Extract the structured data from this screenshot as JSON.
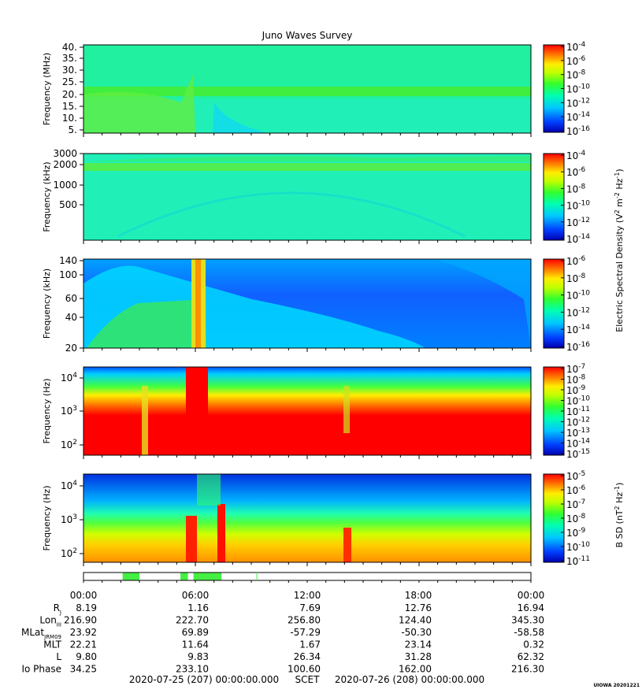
{
  "title": "Juno Waves Survey",
  "chart_data": [
    {
      "type": "heatmap",
      "ylabel": "Frequency (MHz)",
      "yticks": [
        "40.",
        "35.",
        "30.",
        "25.",
        "20.",
        "15.",
        "10.",
        "5."
      ],
      "colorbar_ticks": [
        "-4",
        "-6",
        "-8",
        "-10",
        "-12",
        "-14",
        "-16"
      ]
    },
    {
      "type": "heatmap",
      "ylabel": "Frequency (kHz)",
      "yticks": [
        "3000",
        "2000",
        "1000",
        "500"
      ],
      "colorbar_ticks": [
        "-4",
        "-6",
        "-8",
        "-10",
        "-12",
        "-14"
      ]
    },
    {
      "type": "heatmap",
      "ylabel": "Frequency (kHz)",
      "yticks": [
        "140",
        "100",
        "60",
        "40",
        "20"
      ],
      "colorbar_ticks": [
        "-6",
        "-8",
        "-10",
        "-12",
        "-14",
        "-16"
      ]
    },
    {
      "type": "heatmap",
      "ylabel": "Frequency (Hz)",
      "yticks": [
        "4",
        "3",
        "2"
      ],
      "colorbar_ticks": [
        "-7",
        "-8",
        "-9",
        "-10",
        "-11",
        "-12",
        "-13",
        "-14",
        "-15"
      ]
    },
    {
      "type": "heatmap",
      "ylabel": "Frequency (Hz)",
      "yticks": [
        "4",
        "3",
        "2"
      ],
      "colorbar_ticks": [
        "-5",
        "-6",
        "-7",
        "-8",
        "-9",
        "-10",
        "-11"
      ]
    }
  ],
  "colorbar_labels": {
    "electric": "Electric Spectral Density (V² m⁻² Hz⁻¹)",
    "electric_main": "Electric Spectral Density (V",
    "electric_mid": " m",
    "electric_end": " Hz",
    "electric_close": ")",
    "magnetic_main": "B SD (nT",
    "magnetic_end": " Hz",
    "magnetic_close": ")",
    "sup2": "2",
    "supm2": "-2",
    "supm1": "-1"
  },
  "time_ticks": [
    "00:00",
    "06:00",
    "12:00",
    "18:00",
    "00:00"
  ],
  "ephemeris": {
    "rows": [
      {
        "label": "R",
        "sub": "J",
        "values": [
          "8.19",
          "1.16",
          "7.69",
          "12.76",
          "16.94"
        ]
      },
      {
        "label": "Lon",
        "sub": "III",
        "values": [
          "216.90",
          "222.70",
          "256.80",
          "124.40",
          "345.30"
        ]
      },
      {
        "label": "MLat",
        "sub": "JRM09",
        "values": [
          "23.92",
          "69.89",
          "-57.29",
          "-50.30",
          "-58.58"
        ]
      },
      {
        "label": "MLT",
        "sub": "",
        "values": [
          "22.21",
          "11.64",
          "1.67",
          "23.14",
          "0.32"
        ]
      },
      {
        "label": "L",
        "sub": "",
        "values": [
          "9.80",
          "9.83",
          "26.34",
          "31.28",
          "62.32"
        ]
      },
      {
        "label": "Io Phase",
        "sub": "",
        "values": [
          "34.25",
          "233.10",
          "100.60",
          "162.00",
          "216.30"
        ]
      }
    ]
  },
  "scet": {
    "start": "2020-07-25 (207) 00:00:00.000",
    "label": "SCET",
    "end": "2020-07-26 (208) 00:00:00.000"
  },
  "credit": "UIOWA 20201221",
  "status_bar": {
    "segments_hours": [
      [
        2.1,
        3.0
      ],
      [
        5.2,
        5.6
      ],
      [
        5.9,
        7.4
      ]
    ],
    "marker_hour": 9.3,
    "color": "#44ee44"
  },
  "power_of_ten": "10"
}
